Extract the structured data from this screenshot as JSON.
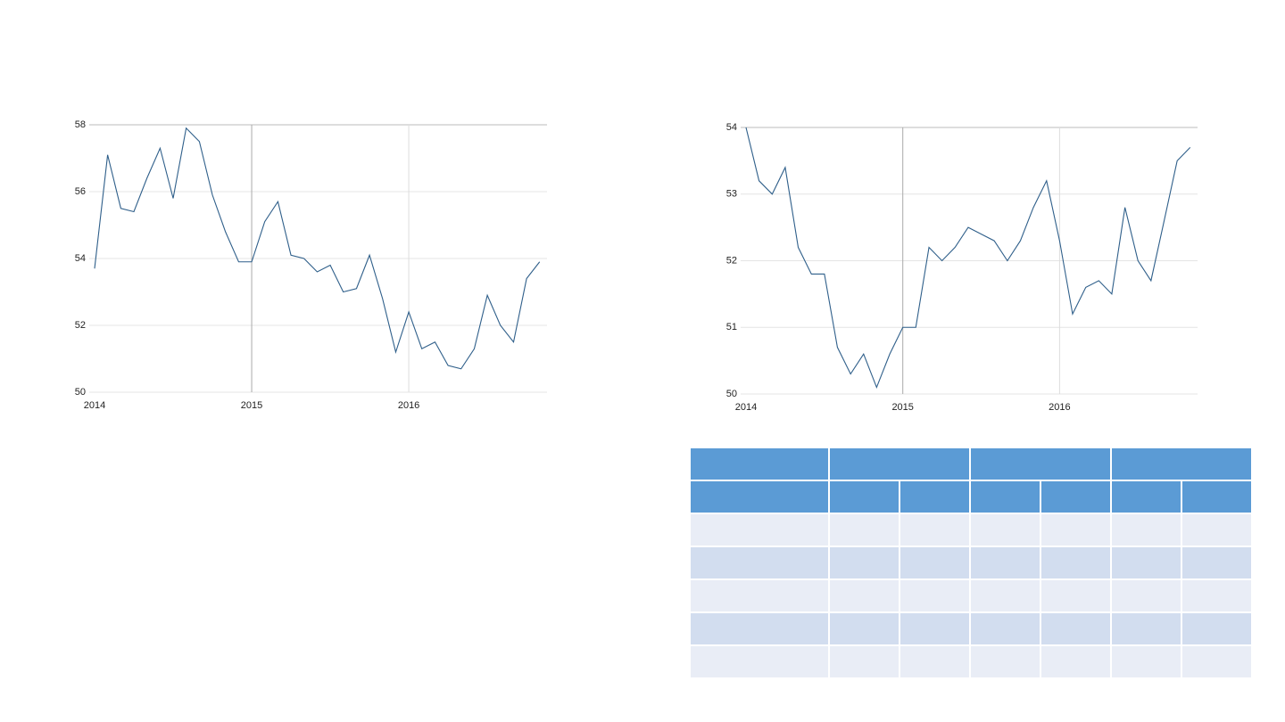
{
  "chart_data": [
    {
      "type": "line",
      "x": [
        2014,
        2014.083,
        2014.167,
        2014.25,
        2014.333,
        2014.417,
        2014.5,
        2014.583,
        2014.667,
        2014.75,
        2014.833,
        2014.917,
        2015,
        2015.083,
        2015.167,
        2015.25,
        2015.333,
        2015.417,
        2015.5,
        2015.583,
        2015.667,
        2015.75,
        2015.833,
        2015.917,
        2016,
        2016.083,
        2016.167,
        2016.25,
        2016.333,
        2016.417,
        2016.5,
        2016.583,
        2016.667,
        2016.75,
        2016.833
      ],
      "series": [
        {
          "color": "#2f5f8a",
          "values": [
            53.7,
            57.1,
            55.5,
            55.4,
            56.4,
            57.3,
            55.8,
            57.9,
            57.5,
            55.9,
            54.8,
            53.9,
            53.9,
            55.1,
            55.7,
            54.1,
            54.0,
            53.6,
            53.8,
            53.0,
            53.1,
            54.1,
            52.8,
            51.2,
            52.4,
            51.3,
            51.5,
            50.8,
            50.7,
            51.3,
            52.9,
            52.0,
            51.5,
            53.4,
            53.9
          ]
        }
      ],
      "xlim": [
        2014,
        2016.88
      ],
      "xticks": [
        2014,
        2015,
        2016
      ],
      "ylim": [
        50,
        58
      ],
      "yticks": [
        50,
        52,
        54,
        56,
        58
      ],
      "grid": true
    },
    {
      "type": "line",
      "x": [
        2014,
        2014.083,
        2014.167,
        2014.25,
        2014.333,
        2014.417,
        2014.5,
        2014.583,
        2014.667,
        2014.75,
        2014.833,
        2014.917,
        2015,
        2015.083,
        2015.167,
        2015.25,
        2015.333,
        2015.417,
        2015.5,
        2015.583,
        2015.667,
        2015.75,
        2015.833,
        2015.917,
        2016,
        2016.083,
        2016.167,
        2016.25,
        2016.333,
        2016.417,
        2016.5,
        2016.583,
        2016.667,
        2016.75,
        2016.833
      ],
      "series": [
        {
          "color": "#2f5f8a",
          "values": [
            54.0,
            53.2,
            53.0,
            53.4,
            52.2,
            51.8,
            51.8,
            50.7,
            50.3,
            50.6,
            50.1,
            50.6,
            51.0,
            51.0,
            52.2,
            52.0,
            52.2,
            52.5,
            52.4,
            52.3,
            52.0,
            52.3,
            52.8,
            53.2,
            52.3,
            51.2,
            51.6,
            51.7,
            51.5,
            52.8,
            52.0,
            51.7,
            52.6,
            53.5,
            53.7
          ]
        }
      ],
      "xlim": [
        2014,
        2016.88
      ],
      "xticks": [
        2014,
        2015,
        2016
      ],
      "ylim": [
        50,
        54
      ],
      "yticks": [
        50,
        51,
        52,
        53,
        54
      ],
      "grid": true
    }
  ]
}
